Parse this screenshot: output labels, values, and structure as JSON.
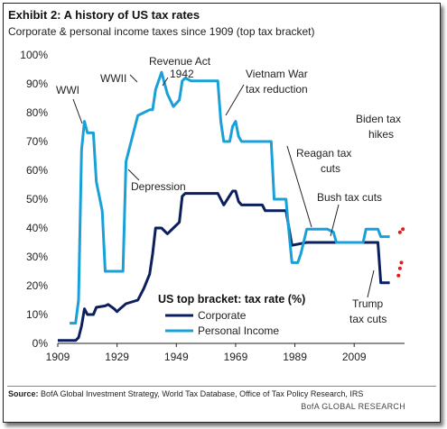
{
  "title": "Exhibit 2: A history of US tax rates",
  "subtitle": "Corporate & personal income taxes since 1909 (top tax bracket)",
  "source_label": "Source:",
  "source_text": " BofA Global Investment Strategy, World Tax Database, Office of Tax Policy Research, IRS",
  "brand": "BofA GLOBAL RESEARCH",
  "legend_title": "US top bracket: tax rate (%)",
  "colors": {
    "corporate": "#0b1f5e",
    "personal": "#1aa0d8",
    "projection": "#e3191c"
  },
  "annotations": {
    "wwi": "WWI",
    "wwii": "WWII",
    "revenue_act_1": "Revenue Act",
    "revenue_act_2": "1942",
    "vietnam_1": "Vietnam War",
    "vietnam_2": "tax reduction",
    "depression": "Depression",
    "reagan_1": "Reagan tax",
    "reagan_2": "cuts",
    "bush": "Bush tax cuts",
    "biden_1": "Biden tax",
    "biden_2": "hikes",
    "trump_1": "Trump",
    "trump_2": "tax cuts"
  },
  "chart_data": {
    "type": "line",
    "title": "Exhibit 2: A history of US tax rates",
    "subtitle": "Corporate & personal income taxes since 1909 (top tax bracket)",
    "xlabel": "",
    "ylabel": "",
    "xlim": [
      1909,
      2026
    ],
    "ylim": [
      0,
      100
    ],
    "x_ticks": [
      "1909",
      "1929",
      "1949",
      "1969",
      "1989",
      "2009"
    ],
    "y_ticks": [
      "0%",
      "10%",
      "20%",
      "30%",
      "40%",
      "50%",
      "60%",
      "70%",
      "80%",
      "90%",
      "100%"
    ],
    "grid": false,
    "legend": "bottom-center",
    "series": [
      {
        "name": "Corporate",
        "points": [
          [
            1909,
            1
          ],
          [
            1915,
            1
          ],
          [
            1916,
            2
          ],
          [
            1917,
            6
          ],
          [
            1918,
            12
          ],
          [
            1919,
            10
          ],
          [
            1921,
            10
          ],
          [
            1922,
            12.5
          ],
          [
            1925,
            13
          ],
          [
            1926,
            13.5
          ],
          [
            1928,
            12
          ],
          [
            1929,
            11
          ],
          [
            1930,
            12
          ],
          [
            1932,
            13.75
          ],
          [
            1936,
            15
          ],
          [
            1938,
            19
          ],
          [
            1940,
            24
          ],
          [
            1941,
            31
          ],
          [
            1942,
            40
          ],
          [
            1944,
            40
          ],
          [
            1946,
            38
          ],
          [
            1950,
            42
          ],
          [
            1951,
            51
          ],
          [
            1952,
            52
          ],
          [
            1963,
            52
          ],
          [
            1964,
            50
          ],
          [
            1965,
            48
          ],
          [
            1968,
            52.8
          ],
          [
            1969,
            52.8
          ],
          [
            1970,
            49.2
          ],
          [
            1971,
            48
          ],
          [
            1978,
            48
          ],
          [
            1979,
            46
          ],
          [
            1986,
            46
          ],
          [
            1987,
            40
          ],
          [
            1988,
            34
          ],
          [
            1993,
            35
          ],
          [
            2017,
            35
          ],
          [
            2018,
            21
          ],
          [
            2021,
            21
          ]
        ]
      },
      {
        "name": "Personal Income",
        "points": [
          [
            1913,
            7
          ],
          [
            1915,
            7
          ],
          [
            1916,
            15
          ],
          [
            1917,
            67
          ],
          [
            1918,
            77
          ],
          [
            1919,
            73
          ],
          [
            1921,
            73
          ],
          [
            1922,
            56
          ],
          [
            1924,
            46
          ],
          [
            1925,
            25
          ],
          [
            1931,
            25
          ],
          [
            1932,
            63
          ],
          [
            1936,
            79
          ],
          [
            1940,
            81
          ],
          [
            1941,
            81
          ],
          [
            1942,
            88
          ],
          [
            1944,
            94
          ],
          [
            1946,
            86.45
          ],
          [
            1948,
            82.13
          ],
          [
            1950,
            84.36
          ],
          [
            1951,
            91
          ],
          [
            1952,
            92
          ],
          [
            1954,
            91
          ],
          [
            1963,
            91
          ],
          [
            1964,
            77
          ],
          [
            1965,
            70
          ],
          [
            1967,
            70
          ],
          [
            1968,
            75.25
          ],
          [
            1969,
            77
          ],
          [
            1970,
            71.75
          ],
          [
            1971,
            70
          ],
          [
            1981,
            70
          ],
          [
            1982,
            50
          ],
          [
            1986,
            50
          ],
          [
            1987,
            38.5
          ],
          [
            1988,
            28
          ],
          [
            1990,
            28
          ],
          [
            1991,
            31
          ],
          [
            1993,
            39.6
          ],
          [
            2000,
            39.6
          ],
          [
            2001,
            39.1
          ],
          [
            2002,
            38.6
          ],
          [
            2003,
            35
          ],
          [
            2012,
            35
          ],
          [
            2013,
            39.6
          ],
          [
            2017,
            39.6
          ],
          [
            2018,
            37
          ],
          [
            2021,
            37
          ]
        ]
      }
    ],
    "projections": [
      {
        "name": "Biden tax hikes (personal)",
        "points": [
          [
            2021,
            37
          ],
          [
            2022,
            38.5
          ],
          [
            2023,
            39.6
          ]
        ]
      },
      {
        "name": "Biden tax hikes (corporate)",
        "points": [
          [
            2021,
            21
          ],
          [
            2021.5,
            23.5
          ],
          [
            2022,
            26
          ],
          [
            2022.5,
            28
          ]
        ]
      }
    ]
  }
}
